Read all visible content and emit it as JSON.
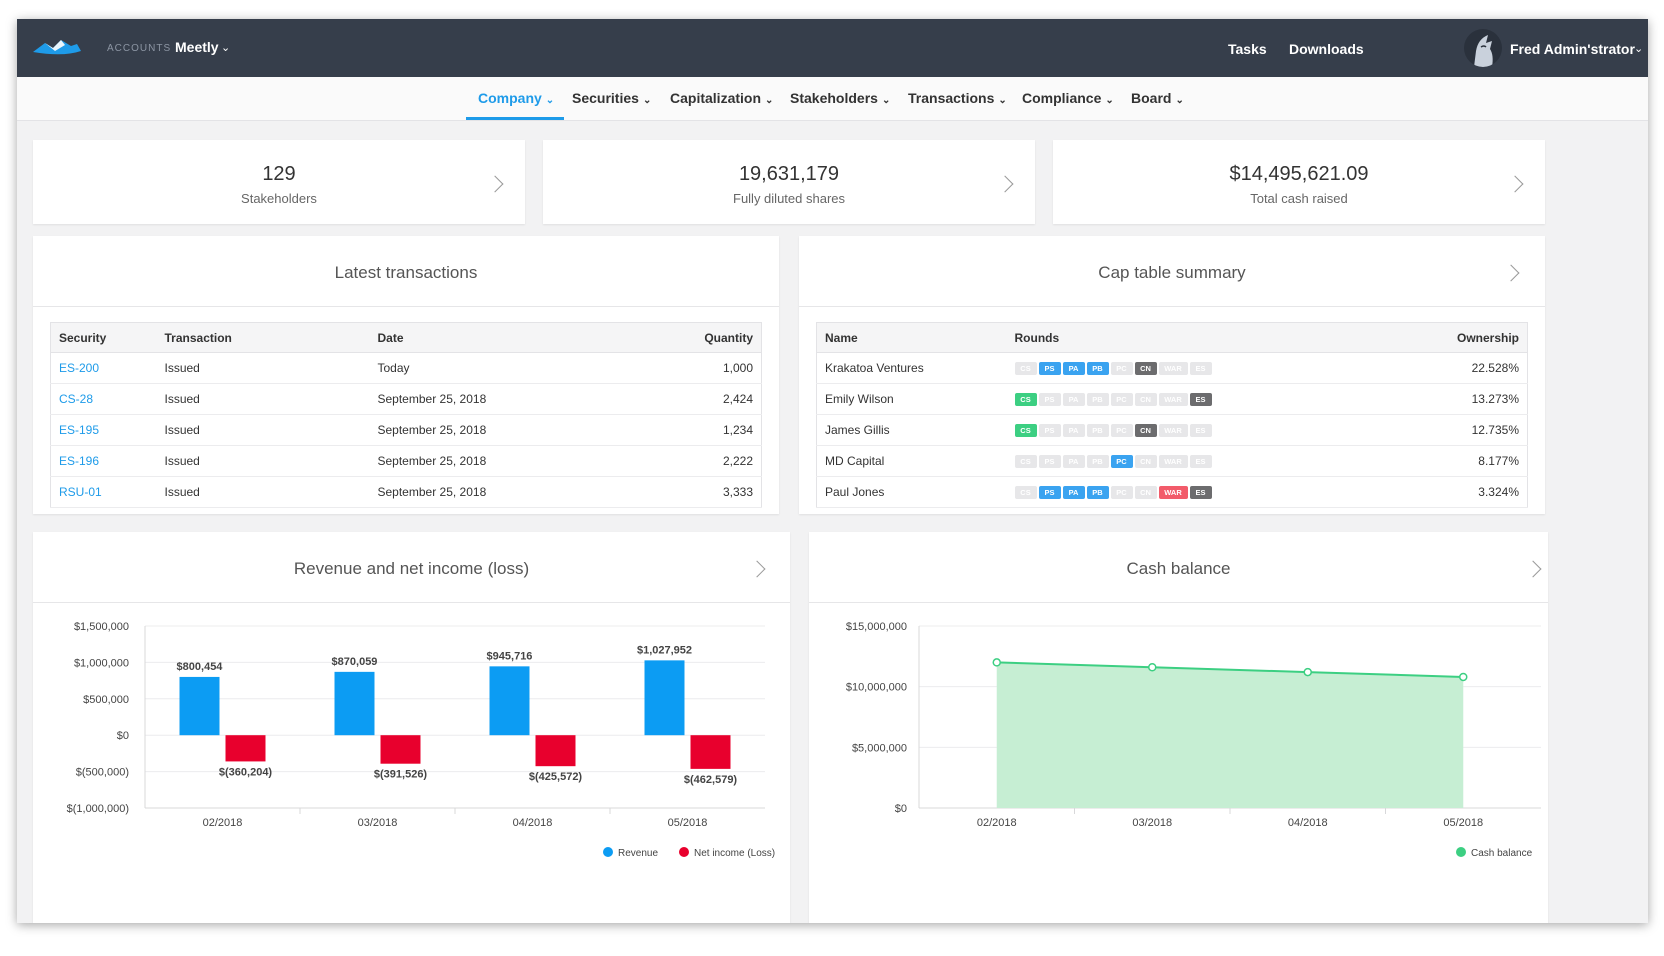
{
  "header": {
    "accounts_label": "ACCOUNTS",
    "account_name": "Meetly",
    "links": [
      "Tasks",
      "Downloads"
    ],
    "user_name": "Fred Admin'strator"
  },
  "nav": {
    "items": [
      "Company",
      "Securities",
      "Capitalization",
      "Stakeholders",
      "Transactions",
      "Compliance",
      "Board"
    ],
    "active": "Company"
  },
  "stats": [
    {
      "value": "129",
      "label": "Stakeholders"
    },
    {
      "value": "19,631,179",
      "label": "Fully diluted shares"
    },
    {
      "value": "$14,495,621.09",
      "label": "Total cash raised"
    }
  ],
  "transactions": {
    "title": "Latest transactions",
    "columns": [
      "Security",
      "Transaction",
      "Date",
      "Quantity"
    ],
    "rows": [
      {
        "security": "ES-200",
        "transaction": "Issued",
        "date": "Today",
        "quantity": "1,000"
      },
      {
        "security": "CS-28",
        "transaction": "Issued",
        "date": "September 25, 2018",
        "quantity": "2,424"
      },
      {
        "security": "ES-195",
        "transaction": "Issued",
        "date": "September 25, 2018",
        "quantity": "1,234"
      },
      {
        "security": "ES-196",
        "transaction": "Issued",
        "date": "September 25, 2018",
        "quantity": "2,222"
      },
      {
        "security": "RSU-01",
        "transaction": "Issued",
        "date": "September 25, 2018",
        "quantity": "3,333"
      }
    ]
  },
  "cap_table": {
    "title": "Cap table summary",
    "columns": [
      "Name",
      "Rounds",
      "Ownership"
    ],
    "round_codes": [
      "CS",
      "PS",
      "PA",
      "PB",
      "PC",
      "CN",
      "WAR",
      "ES"
    ],
    "rows": [
      {
        "name": "Krakatoa Ventures",
        "active_rounds": [
          "PS",
          "PA",
          "PB",
          "CN"
        ],
        "ownership": "22.528%"
      },
      {
        "name": "Emily Wilson",
        "active_rounds": [
          "CS",
          "ES"
        ],
        "ownership": "13.273%"
      },
      {
        "name": "James Gillis",
        "active_rounds": [
          "CS",
          "CN"
        ],
        "ownership": "12.735%"
      },
      {
        "name": "MD Capital",
        "active_rounds": [
          "PC"
        ],
        "ownership": "8.177%"
      },
      {
        "name": "Paul Jones",
        "active_rounds": [
          "PS",
          "PA",
          "PB",
          "WAR",
          "ES"
        ],
        "ownership": "3.324%"
      }
    ]
  },
  "colors": {
    "accent": "#1e9be9",
    "revenue": "#0c9cf3",
    "net_income": "#e8002d",
    "cash": "#3ccf82",
    "cash_fill": "#c6eed3",
    "topbar": "#363e4b"
  },
  "chart_data": [
    {
      "type": "bar",
      "title": "Revenue and net income (loss)",
      "categories": [
        "02/2018",
        "03/2018",
        "04/2018",
        "05/2018"
      ],
      "series": [
        {
          "name": "Revenue",
          "values": [
            800454,
            870059,
            945716,
            1027952
          ],
          "labels": [
            "$800,454",
            "$870,059",
            "$945,716",
            "$1,027,952"
          ]
        },
        {
          "name": "Net income (Loss)",
          "values": [
            -360204,
            -391526,
            -425572,
            -462579
          ],
          "labels": [
            "$(360,204)",
            "$(391,526)",
            "$(425,572)",
            "$(462,579)"
          ]
        }
      ],
      "y_ticks": [
        1500000,
        1000000,
        500000,
        0,
        -500000,
        -1000000
      ],
      "y_tick_labels": [
        "$1,500,000",
        "$1,000,000",
        "$500,000",
        "$0",
        "$(500,000)",
        "$(1,000,000)"
      ],
      "ylim": [
        -1000000,
        1500000
      ],
      "grid": true,
      "legend": "bottom-right"
    },
    {
      "type": "area",
      "title": "Cash balance",
      "categories": [
        "02/2018",
        "03/2018",
        "04/2018",
        "05/2018"
      ],
      "series": [
        {
          "name": "Cash balance",
          "values": [
            12000000,
            11600000,
            11200000,
            10800000
          ]
        }
      ],
      "y_ticks": [
        15000000,
        10000000,
        5000000,
        0
      ],
      "y_tick_labels": [
        "$15,000,000",
        "$10,000,000",
        "$5,000,000",
        "$0"
      ],
      "ylim": [
        0,
        15000000
      ],
      "grid": true,
      "legend": "bottom-right"
    }
  ]
}
